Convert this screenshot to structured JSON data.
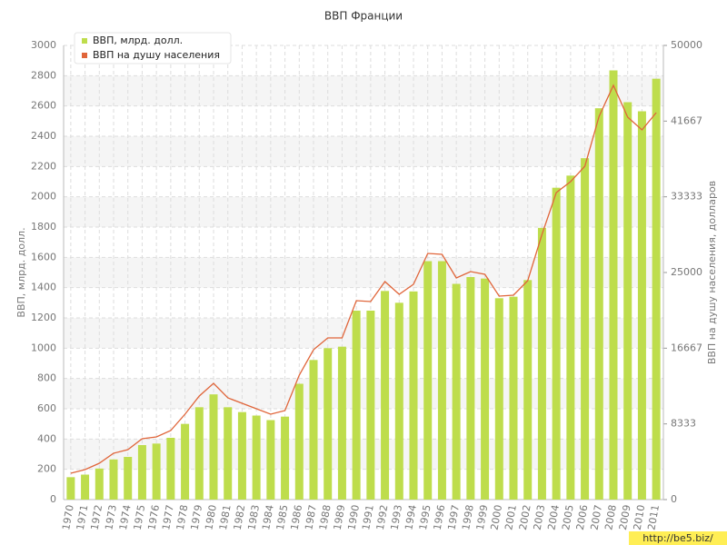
{
  "chart_data": {
    "type": "bar",
    "title": "ВВП Франции",
    "y_label": "ВВП, млрд. долл.",
    "y2_label": "ВВП на душу населения, долларов",
    "categories": [
      "1970",
      "1971",
      "1972",
      "1973",
      "1974",
      "1975",
      "1976",
      "1977",
      "1978",
      "1979",
      "1980",
      "1981",
      "1982",
      "1983",
      "1984",
      "1985",
      "1986",
      "1987",
      "1988",
      "1989",
      "1990",
      "1991",
      "1992",
      "1993",
      "1994",
      "1995",
      "1996",
      "1997",
      "1998",
      "1999",
      "2000",
      "2001",
      "2002",
      "2003",
      "2004",
      "2005",
      "2006",
      "2007",
      "2008",
      "2009",
      "2010",
      "2011"
    ],
    "series": [
      {
        "name": "ВВП, млрд. долл.",
        "color": "#bedd4c",
        "type": "bar",
        "values": [
          148,
          165,
          205,
          265,
          282,
          360,
          370,
          408,
          500,
          610,
          695,
          610,
          578,
          555,
          525,
          548,
          765,
          922,
          1000,
          1010,
          1248,
          1248,
          1378,
          1300,
          1375,
          1575,
          1575,
          1425,
          1470,
          1460,
          1330,
          1340,
          1450,
          1795,
          2060,
          2140,
          2255,
          2585,
          2835,
          2625,
          2565,
          2780
        ]
      },
      {
        "name": "ВВП на душу населения",
        "color": "#e0653a",
        "type": "line",
        "axis": "y2",
        "values": [
          2900,
          3300,
          4000,
          5100,
          5500,
          6700,
          6900,
          7600,
          9400,
          11400,
          12800,
          11200,
          10600,
          10000,
          9400,
          9800,
          13700,
          16500,
          17800,
          17800,
          21900,
          21800,
          24000,
          22600,
          23700,
          27100,
          27000,
          24400,
          25100,
          24800,
          22400,
          22500,
          24100,
          29200,
          33800,
          35000,
          36700,
          42200,
          45600,
          42100,
          40700,
          42600
        ]
      }
    ],
    "ylim": [
      0,
      3000
    ],
    "yticks": [
      0,
      200,
      400,
      600,
      800,
      1000,
      1200,
      1400,
      1600,
      1800,
      2000,
      2200,
      2400,
      2600,
      2800,
      3000
    ],
    "y2lim": [
      0,
      50000
    ],
    "y2ticks": [
      0,
      8333,
      16667,
      25000,
      33333,
      41667,
      50000
    ],
    "grid": true,
    "legend": "top-left",
    "watermark": "http://be5.biz/"
  }
}
